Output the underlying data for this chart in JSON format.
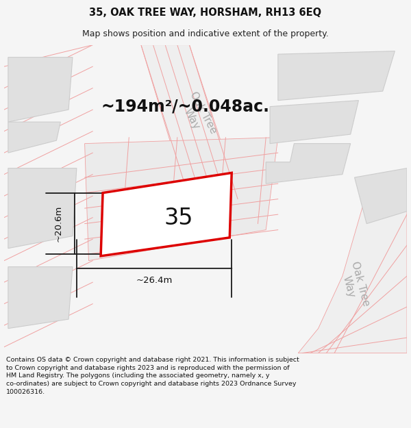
{
  "title": "35, OAK TREE WAY, HORSHAM, RH13 6EQ",
  "subtitle": "Map shows position and indicative extent of the property.",
  "footer": "Contains OS data © Crown copyright and database right 2021. This information is subject\nto Crown copyright and database rights 2023 and is reproduced with the permission of\nHM Land Registry. The polygons (including the associated geometry, namely x, y\nco-ordinates) are subject to Crown copyright and database rights 2023 Ordnance Survey\n100026316.",
  "area_label": "~194m²/~0.048ac.",
  "width_label": "~26.4m",
  "height_label": "~20.6m",
  "plot_number": "35",
  "bg_color": "#f5f5f5",
  "map_bg": "#ffffff",
  "building_fill": "#e0e0e0",
  "building_edge": "#cccccc",
  "road_fill": "#efefef",
  "plot_edge_color": "#dd0000",
  "plot_fill": "#ffffff",
  "road_line_color": "#f0a0a0",
  "dim_line_color": "#1a1a1a",
  "street_label_color": "#aaaaaa",
  "title_fontsize": 10.5,
  "subtitle_fontsize": 9,
  "footer_fontsize": 6.8,
  "area_fontsize": 17,
  "plot_num_fontsize": 24,
  "dim_fontsize": 9.5,
  "street_fontsize": 11
}
